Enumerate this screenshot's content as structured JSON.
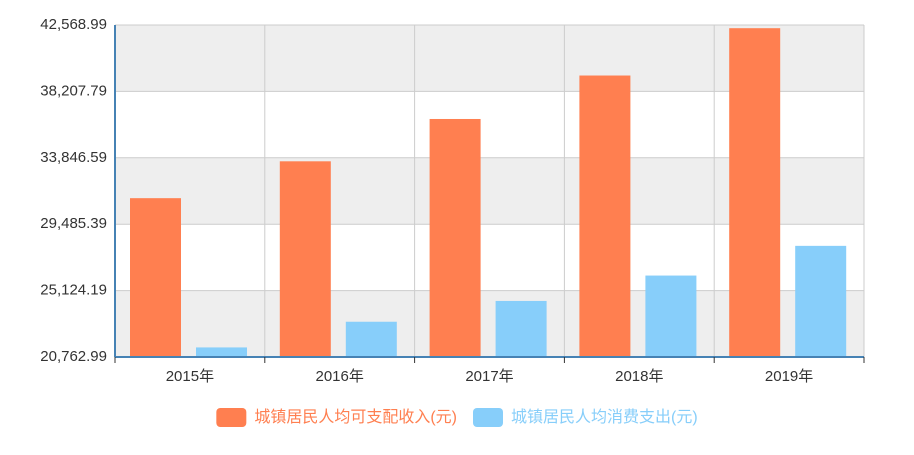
{
  "chart_data": {
    "type": "bar",
    "categories": [
      "2015年",
      "2016年",
      "2017年",
      "2018年",
      "2019年"
    ],
    "series": [
      {
        "name": "城镇居民人均可支配收入(元)",
        "color": "#ff7f50",
        "values": [
          31195,
          33616,
          36396,
          39251,
          42359
        ]
      },
      {
        "name": "城镇居民人均消费支出(元)",
        "color": "#87cefa",
        "values": [
          21392,
          23079,
          24445,
          26112,
          28063
        ]
      }
    ],
    "ylim": [
      20762.99,
      42568.99
    ],
    "yticks": [
      {
        "value": 20762.99,
        "label": "20,762.99"
      },
      {
        "value": 25124.19,
        "label": "25,124.19"
      },
      {
        "value": 29485.39,
        "label": "29,485.39"
      },
      {
        "value": 33846.59,
        "label": "33,846.59"
      },
      {
        "value": 38207.79,
        "label": "38,207.79"
      },
      {
        "value": 42568.99,
        "label": "42,568.99"
      }
    ],
    "grid": true
  }
}
